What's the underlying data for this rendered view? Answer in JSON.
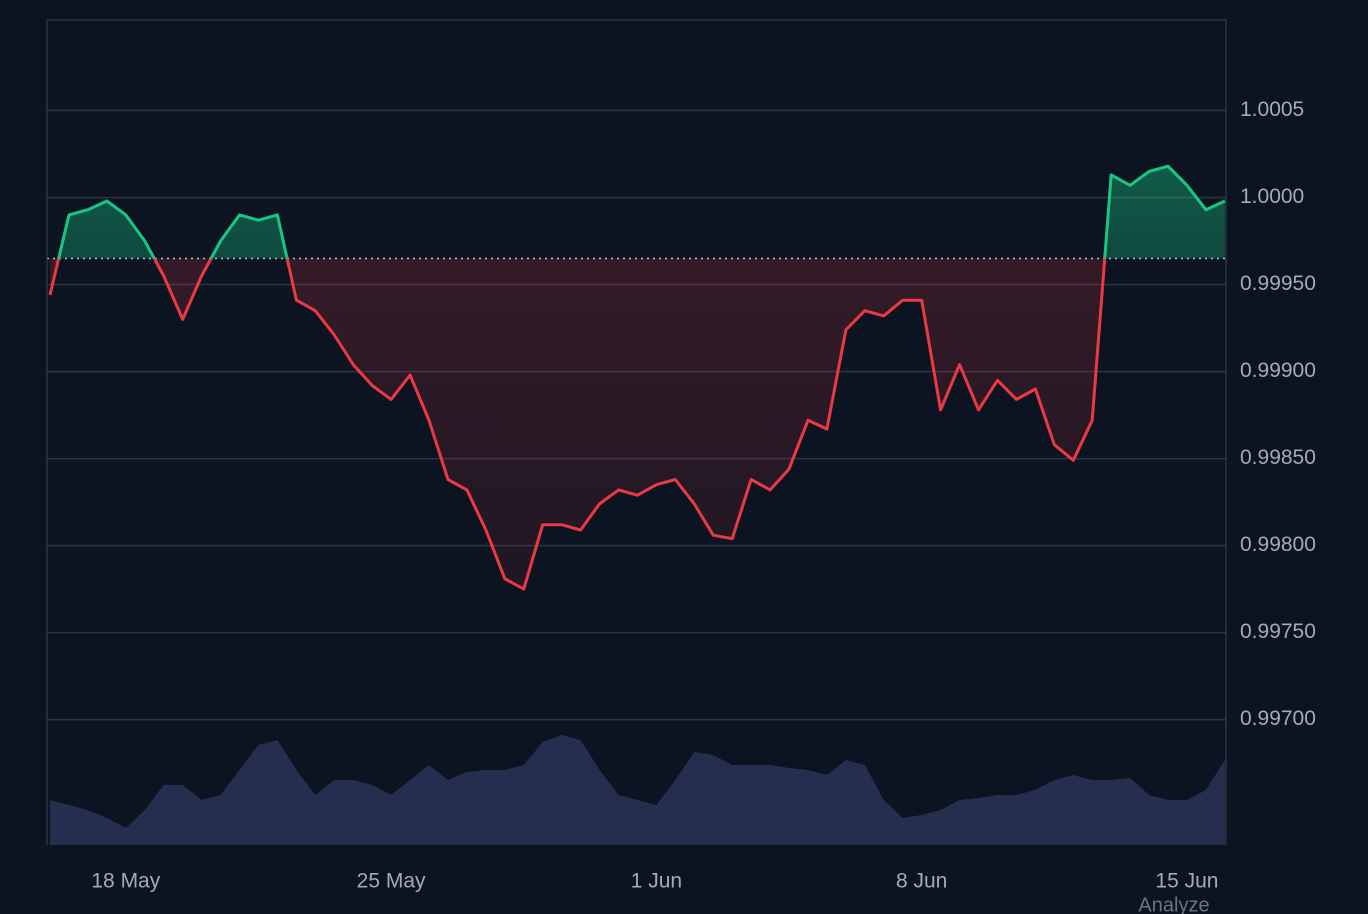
{
  "chart_data": {
    "type": "baseline-line",
    "x": [
      -2,
      -1.5,
      -1,
      -0.5,
      0,
      0.5,
      1,
      1.5,
      2,
      2.5,
      3,
      3.5,
      4,
      4.5,
      5,
      5.5,
      6,
      6.5,
      7,
      7.5,
      8,
      8.5,
      9,
      9.5,
      10,
      10.5,
      11,
      11.5,
      12,
      12.5,
      13,
      13.5,
      14,
      14.5,
      15,
      15.5,
      16,
      16.5,
      17,
      17.5,
      18,
      18.5,
      19,
      19.5,
      20,
      20.5,
      21,
      21.5,
      22,
      22.5,
      23,
      23.5,
      24,
      24.5,
      25,
      25.5,
      26,
      26.5,
      27,
      27.5,
      28,
      28.5,
      29
    ],
    "values": [
      0.99944,
      0.9999,
      0.99993,
      0.99998,
      0.9999,
      0.99975,
      0.99955,
      0.9993,
      0.99955,
      0.99975,
      0.9999,
      0.99987,
      0.9999,
      0.99941,
      0.99935,
      0.99921,
      0.99904,
      0.99892,
      0.99884,
      0.99898,
      0.99872,
      0.99838,
      0.99832,
      0.99809,
      0.99781,
      0.99775,
      0.99812,
      0.99812,
      0.99809,
      0.99824,
      0.99832,
      0.99829,
      0.99835,
      0.99838,
      0.99824,
      0.99806,
      0.99804,
      0.99838,
      0.99832,
      0.99844,
      0.99872,
      0.99867,
      0.99924,
      0.99935,
      0.99932,
      0.99941,
      0.99941,
      0.99878,
      0.99904,
      0.99878,
      0.99895,
      0.99884,
      0.9989,
      0.99858,
      0.99849,
      0.99872,
      1.00013,
      1.00007,
      1.00015,
      1.00018,
      1.00007,
      0.99993,
      0.99998
    ],
    "volume": [
      45,
      40,
      35,
      27,
      17,
      35,
      60,
      60,
      45,
      50,
      75,
      100,
      105,
      75,
      50,
      65,
      65,
      60,
      50,
      65,
      80,
      65,
      73,
      75,
      75,
      80,
      103,
      110,
      105,
      75,
      50,
      45,
      40,
      65,
      93,
      90,
      80,
      80,
      80,
      77,
      75,
      70,
      85,
      80,
      45,
      27,
      30,
      35,
      45,
      47,
      50,
      50,
      55,
      65,
      70,
      65,
      65,
      67,
      50,
      45,
      45,
      55,
      85
    ],
    "baseline": 0.99965,
    "color_above": "#16c784",
    "color_below": "#ea3943",
    "volume_color": "#262e4f",
    "xlim": [
      -2.08,
      29.03
    ],
    "xticks": [
      {
        "value": 0,
        "label": "18 May"
      },
      {
        "value": 7,
        "label": "25 May"
      },
      {
        "value": 14,
        "label": "1 Jun"
      },
      {
        "value": 21,
        "label": "8 Jun"
      },
      {
        "value": 28,
        "label": "15 Jun"
      }
    ],
    "ylim": [
      0.99628,
      1.00102
    ],
    "yticks": [
      {
        "value": 0.997,
        "label": "0.99700"
      },
      {
        "value": 0.9975,
        "label": "0.99750"
      },
      {
        "value": 0.998,
        "label": "0.99800"
      },
      {
        "value": 0.9985,
        "label": "0.99850"
      },
      {
        "value": 0.999,
        "label": "0.99900"
      },
      {
        "value": 0.9995,
        "label": "0.99950"
      },
      {
        "value": 1.0,
        "label": "1.0000"
      },
      1.0005
    ],
    "volume_lim": [
      0,
      825
    ],
    "grid": true,
    "footer": "Analyze"
  }
}
